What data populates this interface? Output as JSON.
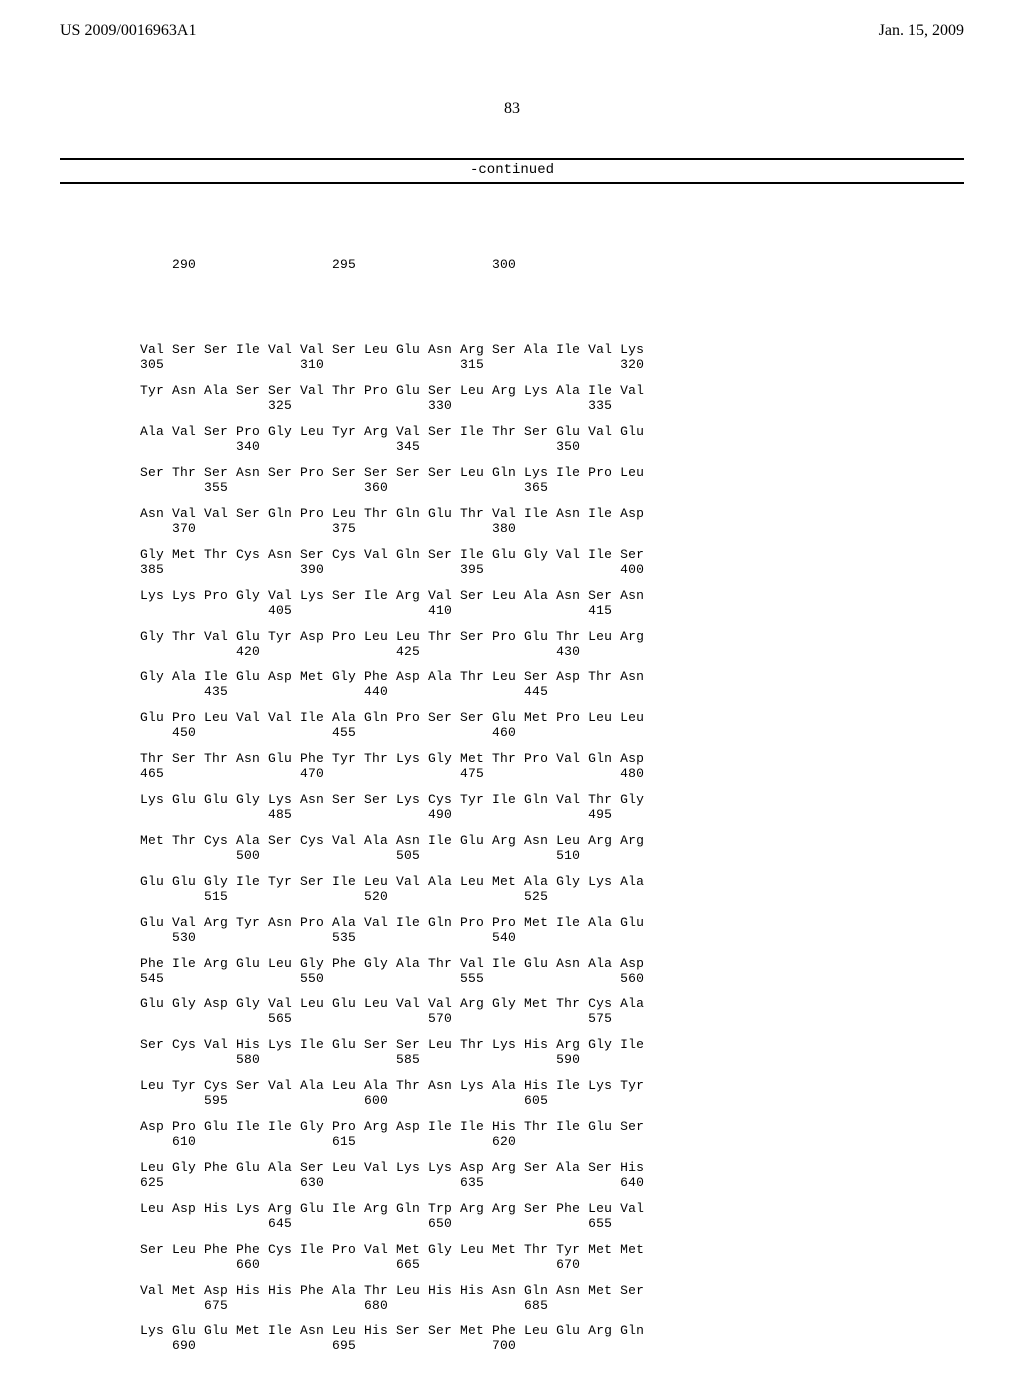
{
  "header": {
    "left": "US 2009/0016963A1",
    "right": "Jan. 15, 2009"
  },
  "pageNumber": "83",
  "continuedLabel": "-continued",
  "positionRow": {
    "aa": "",
    "num": "    290                 295                 300"
  },
  "rows": [
    {
      "aa": "Val Ser Ser Ile Val Val Ser Leu Glu Asn Arg Ser Ala Ile Val Lys",
      "num": "305                 310                 315                 320"
    },
    {
      "aa": "Tyr Asn Ala Ser Ser Val Thr Pro Glu Ser Leu Arg Lys Ala Ile Val",
      "num": "                325                 330                 335"
    },
    {
      "aa": "Ala Val Ser Pro Gly Leu Tyr Arg Val Ser Ile Thr Ser Glu Val Glu",
      "num": "            340                 345                 350"
    },
    {
      "aa": "Ser Thr Ser Asn Ser Pro Ser Ser Ser Ser Leu Gln Lys Ile Pro Leu",
      "num": "        355                 360                 365"
    },
    {
      "aa": "Asn Val Val Ser Gln Pro Leu Thr Gln Glu Thr Val Ile Asn Ile Asp",
      "num": "    370                 375                 380"
    },
    {
      "aa": "Gly Met Thr Cys Asn Ser Cys Val Gln Ser Ile Glu Gly Val Ile Ser",
      "num": "385                 390                 395                 400"
    },
    {
      "aa": "Lys Lys Pro Gly Val Lys Ser Ile Arg Val Ser Leu Ala Asn Ser Asn",
      "num": "                405                 410                 415"
    },
    {
      "aa": "Gly Thr Val Glu Tyr Asp Pro Leu Leu Thr Ser Pro Glu Thr Leu Arg",
      "num": "            420                 425                 430"
    },
    {
      "aa": "Gly Ala Ile Glu Asp Met Gly Phe Asp Ala Thr Leu Ser Asp Thr Asn",
      "num": "        435                 440                 445"
    },
    {
      "aa": "Glu Pro Leu Val Val Ile Ala Gln Pro Ser Ser Glu Met Pro Leu Leu",
      "num": "    450                 455                 460"
    },
    {
      "aa": "Thr Ser Thr Asn Glu Phe Tyr Thr Lys Gly Met Thr Pro Val Gln Asp",
      "num": "465                 470                 475                 480"
    },
    {
      "aa": "Lys Glu Glu Gly Lys Asn Ser Ser Lys Cys Tyr Ile Gln Val Thr Gly",
      "num": "                485                 490                 495"
    },
    {
      "aa": "Met Thr Cys Ala Ser Cys Val Ala Asn Ile Glu Arg Asn Leu Arg Arg",
      "num": "            500                 505                 510"
    },
    {
      "aa": "Glu Glu Gly Ile Tyr Ser Ile Leu Val Ala Leu Met Ala Gly Lys Ala",
      "num": "        515                 520                 525"
    },
    {
      "aa": "Glu Val Arg Tyr Asn Pro Ala Val Ile Gln Pro Pro Met Ile Ala Glu",
      "num": "    530                 535                 540"
    },
    {
      "aa": "Phe Ile Arg Glu Leu Gly Phe Gly Ala Thr Val Ile Glu Asn Ala Asp",
      "num": "545                 550                 555                 560"
    },
    {
      "aa": "Glu Gly Asp Gly Val Leu Glu Leu Val Val Arg Gly Met Thr Cys Ala",
      "num": "                565                 570                 575"
    },
    {
      "aa": "Ser Cys Val His Lys Ile Glu Ser Ser Leu Thr Lys His Arg Gly Ile",
      "num": "            580                 585                 590"
    },
    {
      "aa": "Leu Tyr Cys Ser Val Ala Leu Ala Thr Asn Lys Ala His Ile Lys Tyr",
      "num": "        595                 600                 605"
    },
    {
      "aa": "Asp Pro Glu Ile Ile Gly Pro Arg Asp Ile Ile His Thr Ile Glu Ser",
      "num": "    610                 615                 620"
    },
    {
      "aa": "Leu Gly Phe Glu Ala Ser Leu Val Lys Lys Asp Arg Ser Ala Ser His",
      "num": "625                 630                 635                 640"
    },
    {
      "aa": "Leu Asp His Lys Arg Glu Ile Arg Gln Trp Arg Arg Ser Phe Leu Val",
      "num": "                645                 650                 655"
    },
    {
      "aa": "Ser Leu Phe Phe Cys Ile Pro Val Met Gly Leu Met Thr Tyr Met Met",
      "num": "            660                 665                 670"
    },
    {
      "aa": "Val Met Asp His His Phe Ala Thr Leu His His Asn Gln Asn Met Ser",
      "num": "        675                 680                 685"
    },
    {
      "aa": "Lys Glu Glu Met Ile Asn Leu His Ser Ser Met Phe Leu Glu Arg Gln",
      "num": "    690                 695                 700"
    }
  ]
}
